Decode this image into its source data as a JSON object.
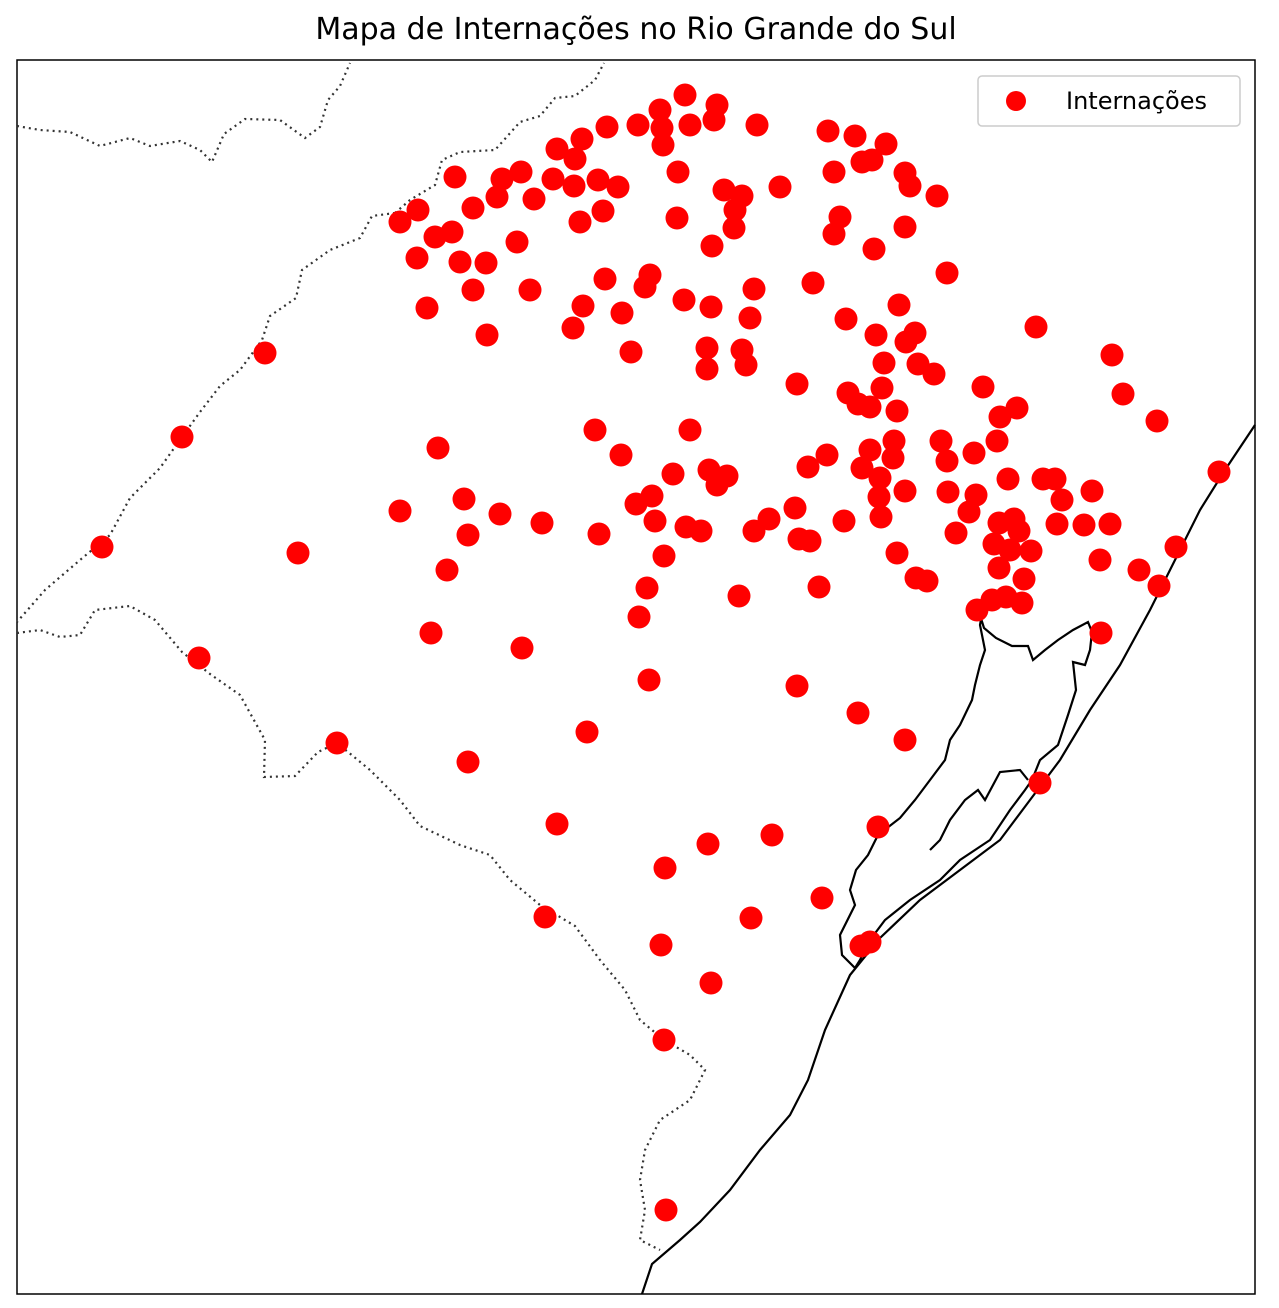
{
  "title": "Mapa de Internações no Rio Grande do Sul",
  "legend": {
    "label": "Internações",
    "marker_color": "#ff0000",
    "position": "top-right"
  },
  "colors": {
    "points": "#ff0000",
    "coastline": "#000000",
    "borders": "#333333",
    "frame": "#000000"
  },
  "chart_data": {
    "type": "scatter",
    "title": "Mapa de Internações no Rio Grande do Sul",
    "series": [
      {
        "name": "Internações",
        "points": [
          [
            685,
            95
          ],
          [
            717,
            105
          ],
          [
            660,
            110
          ],
          [
            638,
            125
          ],
          [
            607,
            127
          ],
          [
            690,
            125
          ],
          [
            714,
            120
          ],
          [
            757,
            125
          ],
          [
            828,
            131
          ],
          [
            855,
            136
          ],
          [
            886,
            144
          ],
          [
            582,
            139
          ],
          [
            557,
            149
          ],
          [
            575,
            159
          ],
          [
            663,
            145
          ],
          [
            662,
            128
          ],
          [
            521,
            172
          ],
          [
            553,
            179
          ],
          [
            574,
            186
          ],
          [
            598,
            180
          ],
          [
            618,
            187
          ],
          [
            678,
            172
          ],
          [
            724,
            190
          ],
          [
            742,
            196
          ],
          [
            780,
            187
          ],
          [
            834,
            172
          ],
          [
            862,
            162
          ],
          [
            872,
            160
          ],
          [
            905,
            173
          ],
          [
            910,
            186
          ],
          [
            937,
            196
          ],
          [
            455,
            177
          ],
          [
            502,
            179
          ],
          [
            497,
            197
          ],
          [
            534,
            199
          ],
          [
            473,
            208
          ],
          [
            418,
            210
          ],
          [
            400,
            222
          ],
          [
            435,
            237
          ],
          [
            452,
            232
          ],
          [
            417,
            258
          ],
          [
            460,
            262
          ],
          [
            486,
            263
          ],
          [
            517,
            242
          ],
          [
            580,
            222
          ],
          [
            603,
            211
          ],
          [
            677,
            218
          ],
          [
            735,
            210
          ],
          [
            734,
            228
          ],
          [
            712,
            246
          ],
          [
            840,
            217
          ],
          [
            834,
            234
          ],
          [
            905,
            227
          ],
          [
            874,
            249
          ],
          [
            947,
            273
          ],
          [
            473,
            290
          ],
          [
            530,
            290
          ],
          [
            605,
            279
          ],
          [
            650,
            275
          ],
          [
            645,
            287
          ],
          [
            427,
            308
          ],
          [
            487,
            335
          ],
          [
            573,
            328
          ],
          [
            583,
            306
          ],
          [
            622,
            313
          ],
          [
            684,
            300
          ],
          [
            711,
            307
          ],
          [
            754,
            289
          ],
          [
            750,
            318
          ],
          [
            813,
            283
          ],
          [
            846,
            319
          ],
          [
            899,
            305
          ],
          [
            876,
            335
          ],
          [
            915,
            333
          ],
          [
            906,
            342
          ],
          [
            631,
            352
          ],
          [
            707,
            348
          ],
          [
            707,
            369
          ],
          [
            742,
            350
          ],
          [
            746,
            365
          ],
          [
            797,
            384
          ],
          [
            884,
            363
          ],
          [
            918,
            364
          ],
          [
            934,
            374
          ],
          [
            848,
            393
          ],
          [
            858,
            404
          ],
          [
            870,
            407
          ],
          [
            897,
            411
          ],
          [
            882,
            388
          ],
          [
            983,
            387
          ],
          [
            1000,
            417
          ],
          [
            1017,
            408
          ],
          [
            1036,
            327
          ],
          [
            1112,
            355
          ],
          [
            1123,
            394
          ],
          [
            1157,
            421
          ],
          [
            1219,
            472
          ],
          [
            265,
            353
          ],
          [
            182,
            437
          ],
          [
            102,
            547
          ],
          [
            298,
            553
          ],
          [
            199,
            658
          ],
          [
            337,
            743
          ],
          [
            438,
            448
          ],
          [
            400,
            511
          ],
          [
            464,
            499
          ],
          [
            500,
            514
          ],
          [
            542,
            523
          ],
          [
            468,
            535
          ],
          [
            447,
            570
          ],
          [
            595,
            430
          ],
          [
            621,
            455
          ],
          [
            599,
            534
          ],
          [
            636,
            504
          ],
          [
            652,
            496
          ],
          [
            655,
            521
          ],
          [
            664,
            556
          ],
          [
            673,
            474
          ],
          [
            690,
            430
          ],
          [
            686,
            527
          ],
          [
            701,
            531
          ],
          [
            709,
            470
          ],
          [
            727,
            476
          ],
          [
            717,
            485
          ],
          [
            754,
            531
          ],
          [
            769,
            519
          ],
          [
            795,
            508
          ],
          [
            799,
            539
          ],
          [
            810,
            541
          ],
          [
            827,
            455
          ],
          [
            808,
            467
          ],
          [
            844,
            521
          ],
          [
            862,
            468
          ],
          [
            870,
            450
          ],
          [
            894,
            441
          ],
          [
            893,
            458
          ],
          [
            880,
            478
          ],
          [
            879,
            497
          ],
          [
            881,
            517
          ],
          [
            905,
            491
          ],
          [
            897,
            553
          ],
          [
            941,
            441
          ],
          [
            947,
            461
          ],
          [
            974,
            453
          ],
          [
            997,
            441
          ],
          [
            948,
            492
          ],
          [
            969,
            512
          ],
          [
            956,
            533
          ],
          [
            976,
            495
          ],
          [
            1008,
            479
          ],
          [
            1043,
            479
          ],
          [
            1055,
            479
          ],
          [
            1092,
            491
          ],
          [
            1062,
            500
          ],
          [
            1057,
            524
          ],
          [
            1084,
            525
          ],
          [
            1110,
            524
          ],
          [
            999,
            523
          ],
          [
            1014,
            519
          ],
          [
            1019,
            531
          ],
          [
            1010,
            550
          ],
          [
            994,
            544
          ],
          [
            1031,
            551
          ],
          [
            999,
            568
          ],
          [
            1024,
            579
          ],
          [
            1022,
            603
          ],
          [
            977,
            610
          ],
          [
            992,
            600
          ],
          [
            1006,
            597
          ],
          [
            916,
            578
          ],
          [
            927,
            581
          ],
          [
            1100,
            560
          ],
          [
            1139,
            570
          ],
          [
            1159,
            586
          ],
          [
            1176,
            547
          ],
          [
            1101,
            633
          ],
          [
            431,
            633
          ],
          [
            522,
            648
          ],
          [
            647,
            588
          ],
          [
            639,
            617
          ],
          [
            649,
            680
          ],
          [
            739,
            596
          ],
          [
            819,
            587
          ],
          [
            797,
            686
          ],
          [
            858,
            713
          ],
          [
            905,
            740
          ],
          [
            587,
            732
          ],
          [
            468,
            762
          ],
          [
            557,
            824
          ],
          [
            665,
            868
          ],
          [
            708,
            844
          ],
          [
            772,
            835
          ],
          [
            878,
            827
          ],
          [
            1040,
            783
          ],
          [
            545,
            917
          ],
          [
            661,
            945
          ],
          [
            751,
            918
          ],
          [
            822,
            898
          ],
          [
            861,
            946
          ],
          [
            870,
            942
          ],
          [
            711,
            983
          ],
          [
            664,
            1040
          ],
          [
            666,
            1210
          ]
        ]
      }
    ]
  }
}
